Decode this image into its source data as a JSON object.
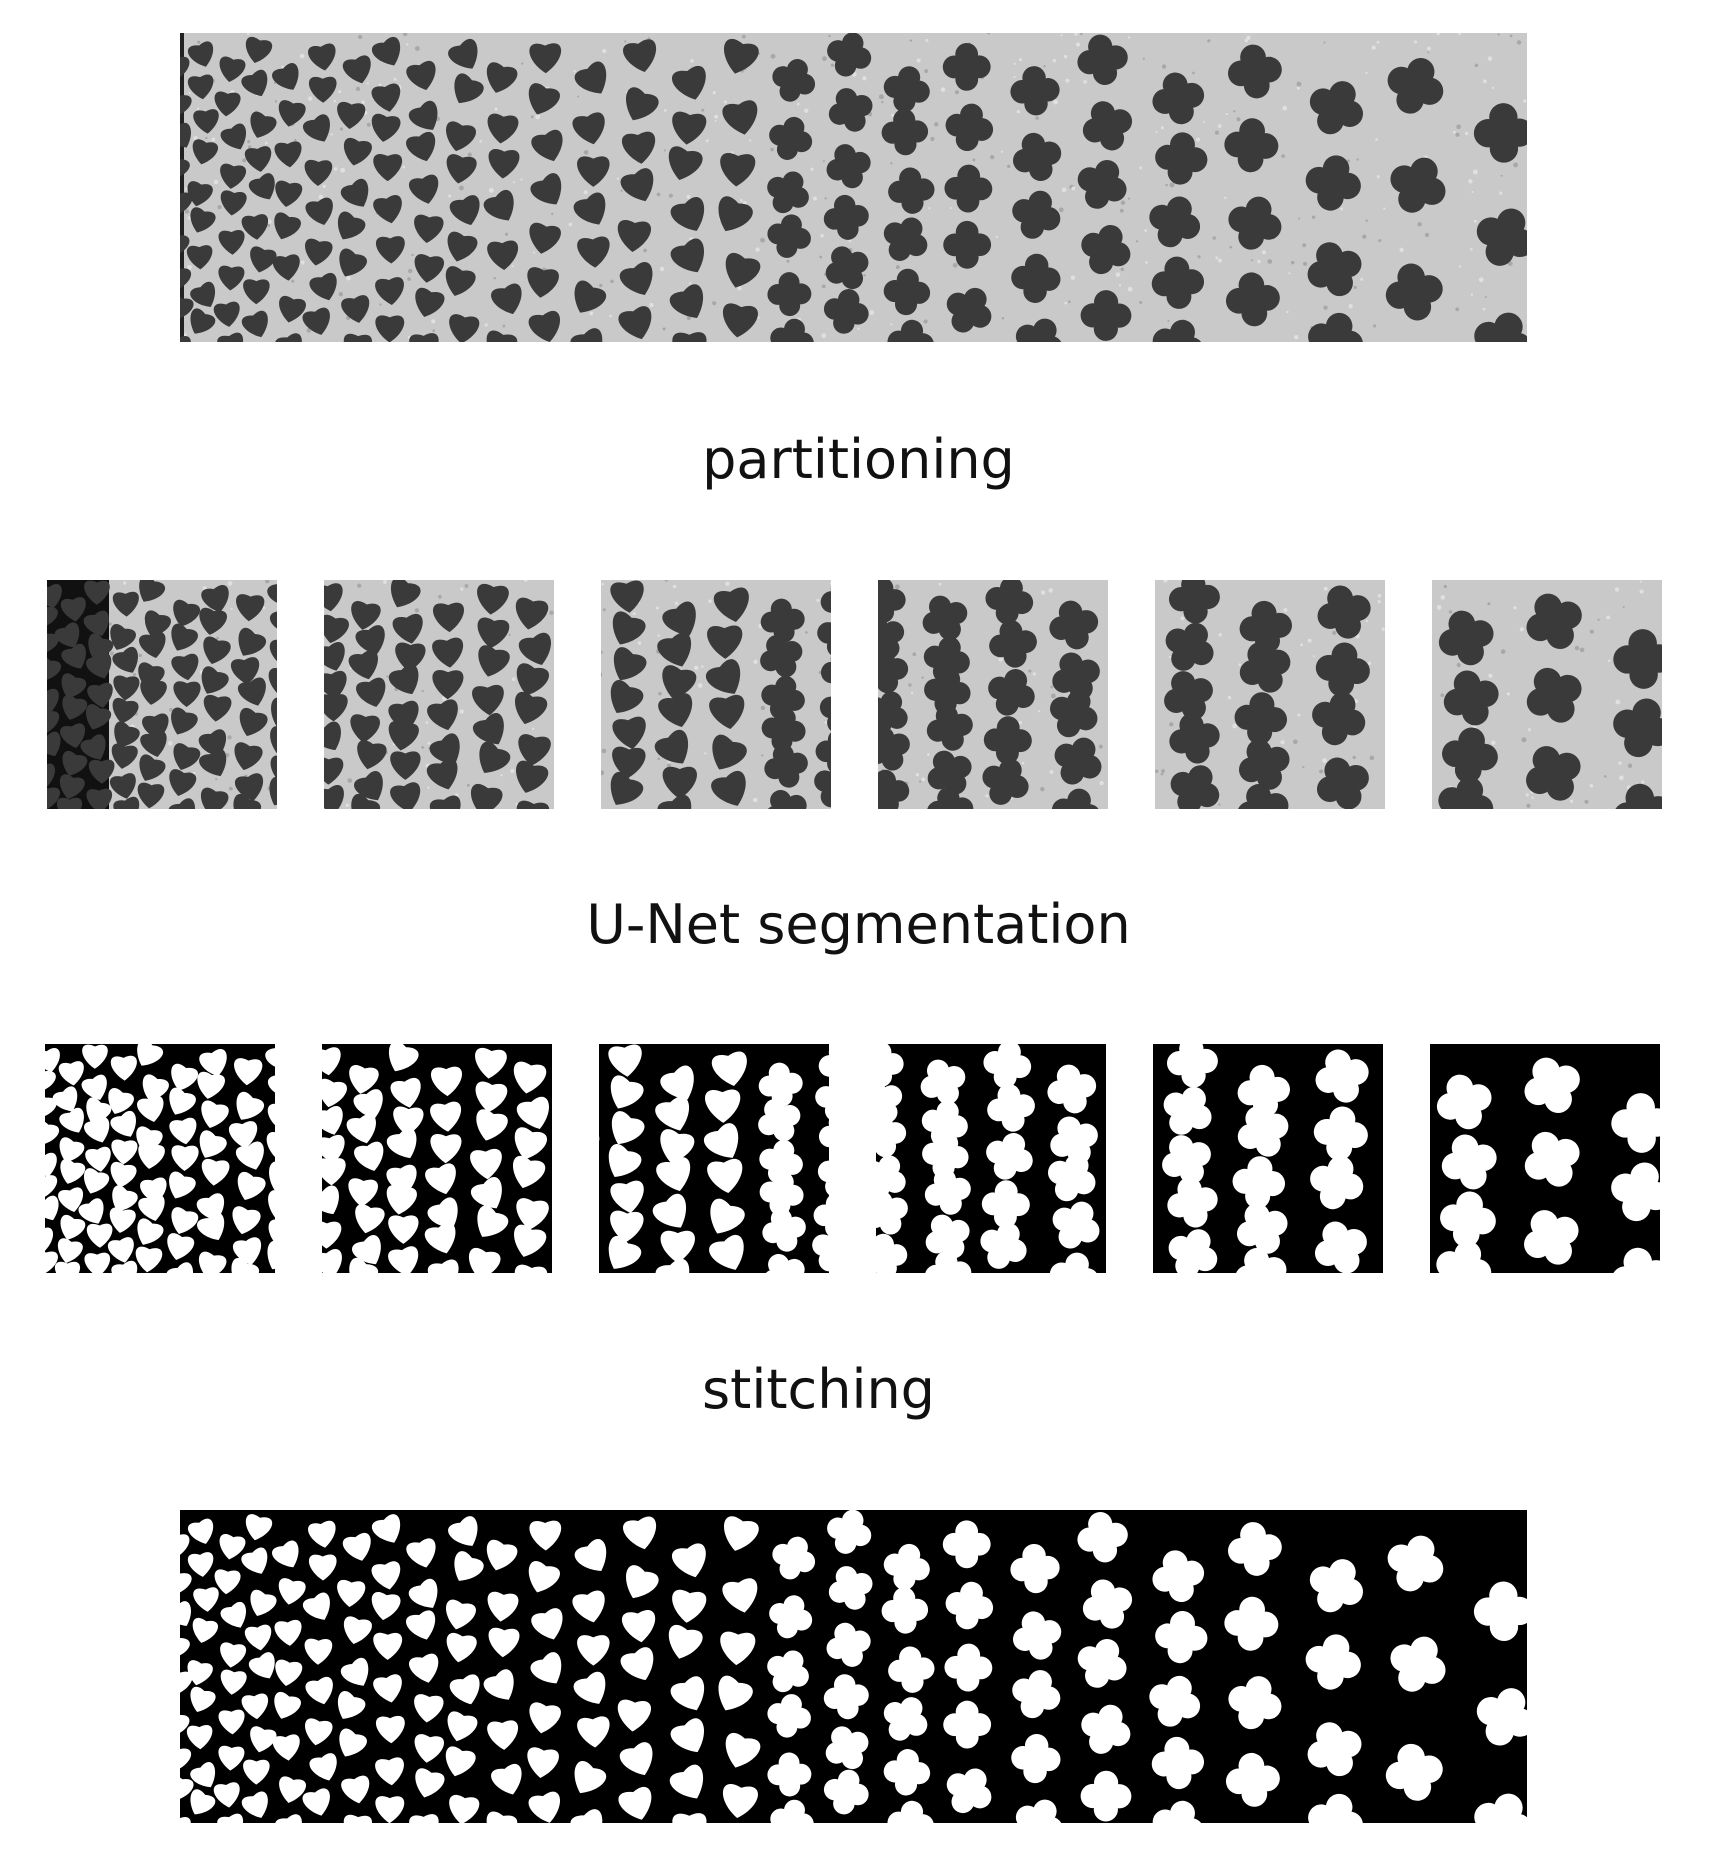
{
  "labels": {
    "partitioning": "partitioning",
    "unet": "U-Net segmentation",
    "stitching": "stitching"
  },
  "colors": {
    "background": "#ffffff",
    "raw_light": "#c9c9c9",
    "raw_dark": "#3a3a3a",
    "mask_fg": "#ffffff",
    "mask_bg": "#000000"
  },
  "tiles": {
    "count": 6
  }
}
